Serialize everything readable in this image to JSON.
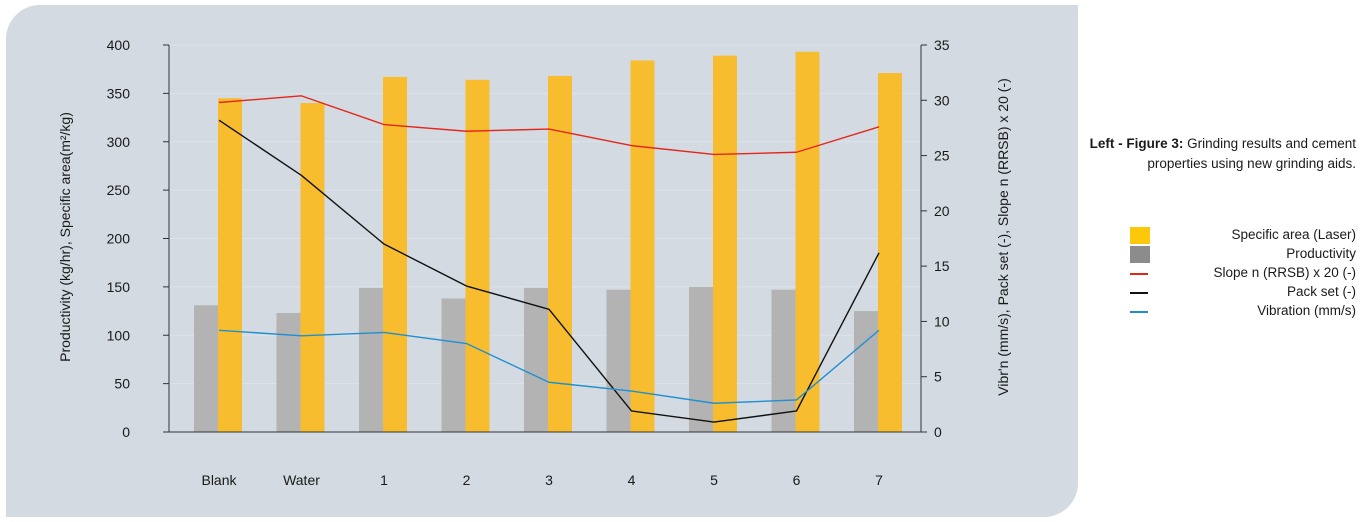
{
  "chart_data": {
    "type": "bar",
    "categories": [
      "Blank",
      "Water",
      "1",
      "2",
      "3",
      "4",
      "5",
      "6",
      "7"
    ],
    "ylabel_left": "Productivity (kg/hr), Specific area(m²/kg)",
    "ylabel_right": "Vibr'n (mm/s), Pack set (-), Slope n (RRSB) x 20 (-)",
    "ylim_left": [
      0,
      400
    ],
    "ylim_right": [
      0,
      35
    ],
    "yticks_left": [
      0,
      50,
      100,
      150,
      200,
      250,
      300,
      350,
      400
    ],
    "yticks_right": [
      0,
      5,
      10,
      15,
      20,
      25,
      30,
      35
    ],
    "grid": true,
    "series": [
      {
        "name": "Specific area (Laser)",
        "type": "bar",
        "axis": "left",
        "color": "#f8bd2e",
        "values": [
          345,
          340,
          367,
          364,
          368,
          384,
          389,
          393,
          371
        ]
      },
      {
        "name": "Productivity",
        "type": "bar",
        "axis": "left",
        "color": "#b3b3b3",
        "values": [
          131,
          123,
          149,
          138,
          149,
          147,
          150,
          147,
          125
        ]
      },
      {
        "name": "Slope n (RRSB) x 20 (-)",
        "type": "line",
        "axis": "right",
        "color": "#e3271b",
        "values": [
          29.8,
          30.4,
          27.8,
          27.2,
          27.4,
          25.9,
          25.1,
          25.3,
          27.6
        ]
      },
      {
        "name": "Pack set (-)",
        "type": "line",
        "axis": "right",
        "color": "#111111",
        "values": [
          28.2,
          23.2,
          17.0,
          13.2,
          11.1,
          1.9,
          0.9,
          1.9,
          16.2
        ]
      },
      {
        "name": "Vibration (mm/s)",
        "type": "line",
        "axis": "right",
        "color": "#1f8fcf",
        "values": [
          9.2,
          8.7,
          9.0,
          8.0,
          4.5,
          3.7,
          2.6,
          2.9,
          9.2
        ]
      }
    ]
  },
  "caption": {
    "lead": "Left - Figure 3:",
    "text": "Grinding results and cement properties using new grinding aids."
  },
  "legend": [
    {
      "label": "Specific area (Laser)",
      "swatch": "box",
      "color": "#fdc80a"
    },
    {
      "label": "Productivity",
      "swatch": "box",
      "color": "#8c8c8c"
    },
    {
      "label": "Slope n (RRSB) x 20 (-)",
      "swatch": "line",
      "color": "#e3271b"
    },
    {
      "label": "Pack set (-)",
      "swatch": "line",
      "color": "#111111"
    },
    {
      "label": "Vibration (mm/s)",
      "swatch": "line",
      "color": "#1f8fcf"
    }
  ]
}
